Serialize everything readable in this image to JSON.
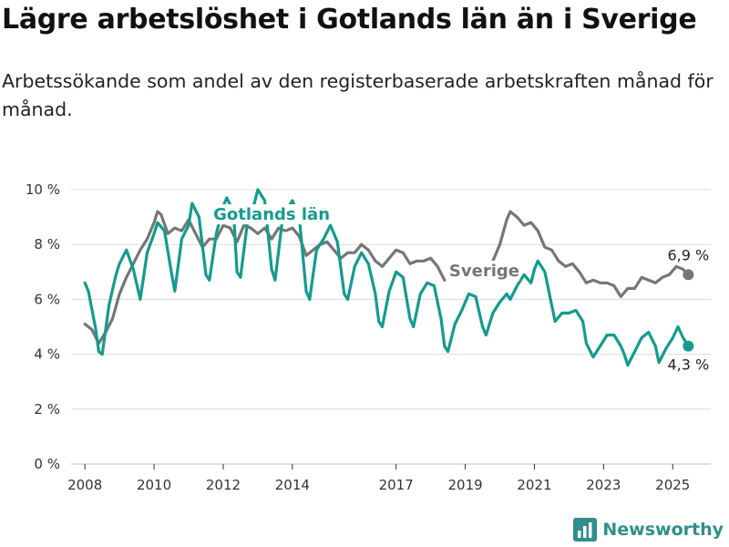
{
  "title": "Lägre arbetslöshet i Gotlands län än i Sverige",
  "subtitle": "Arbetssökande som andel av den registerbaserade arbetskraften månad för månad.",
  "brand": {
    "name": "Newsworthy",
    "icon": "bar-chart-logo-icon",
    "color": "#2f8f8a"
  },
  "chart_data": {
    "type": "line",
    "x_unit": "year",
    "xlim": [
      2007.6,
      2026.1
    ],
    "ylim": [
      0,
      10
    ],
    "grid": true,
    "x_ticks": [
      {
        "value": 2008,
        "label": "2008"
      },
      {
        "value": 2010,
        "label": "2010"
      },
      {
        "value": 2012,
        "label": "2012"
      },
      {
        "value": 2014,
        "label": "2014"
      },
      {
        "value": 2017,
        "label": "2017"
      },
      {
        "value": 2019,
        "label": "2019"
      },
      {
        "value": 2021,
        "label": "2021"
      },
      {
        "value": 2023,
        "label": "2023"
      },
      {
        "value": 2025,
        "label": "2025"
      }
    ],
    "y_ticks": [
      {
        "value": 0,
        "label": "0 %"
      },
      {
        "value": 2,
        "label": "2 %"
      },
      {
        "value": 4,
        "label": "4 %"
      },
      {
        "value": 6,
        "label": "6 %"
      },
      {
        "value": 8,
        "label": "8 %"
      },
      {
        "value": 10,
        "label": "10 %"
      }
    ],
    "series": [
      {
        "name": "Sverige",
        "color": "#767676",
        "end_label": "6,9 %",
        "points": [
          [
            2008.0,
            5.1
          ],
          [
            2008.2,
            4.9
          ],
          [
            2008.4,
            4.4
          ],
          [
            2008.6,
            4.8
          ],
          [
            2008.8,
            5.3
          ],
          [
            2009.0,
            6.2
          ],
          [
            2009.2,
            6.8
          ],
          [
            2009.4,
            7.3
          ],
          [
            2009.6,
            7.8
          ],
          [
            2009.8,
            8.2
          ],
          [
            2010.0,
            8.8
          ],
          [
            2010.1,
            9.2
          ],
          [
            2010.2,
            9.1
          ],
          [
            2010.4,
            8.4
          ],
          [
            2010.6,
            8.6
          ],
          [
            2010.8,
            8.5
          ],
          [
            2011.0,
            8.9
          ],
          [
            2011.2,
            8.4
          ],
          [
            2011.4,
            7.9
          ],
          [
            2011.6,
            8.2
          ],
          [
            2011.8,
            8.2
          ],
          [
            2012.0,
            8.7
          ],
          [
            2012.2,
            8.6
          ],
          [
            2012.4,
            8.1
          ],
          [
            2012.6,
            8.7
          ],
          [
            2012.8,
            8.6
          ],
          [
            2013.0,
            8.4
          ],
          [
            2013.2,
            8.6
          ],
          [
            2013.4,
            8.2
          ],
          [
            2013.6,
            8.6
          ],
          [
            2013.8,
            8.5
          ],
          [
            2014.0,
            8.6
          ],
          [
            2014.2,
            8.3
          ],
          [
            2014.4,
            7.6
          ],
          [
            2014.6,
            7.8
          ],
          [
            2014.8,
            8.0
          ],
          [
            2015.0,
            8.1
          ],
          [
            2015.2,
            7.8
          ],
          [
            2015.4,
            7.5
          ],
          [
            2015.6,
            7.7
          ],
          [
            2015.8,
            7.7
          ],
          [
            2016.0,
            8.0
          ],
          [
            2016.2,
            7.8
          ],
          [
            2016.4,
            7.4
          ],
          [
            2016.6,
            7.2
          ],
          [
            2016.8,
            7.5
          ],
          [
            2017.0,
            7.8
          ],
          [
            2017.2,
            7.7
          ],
          [
            2017.4,
            7.3
          ],
          [
            2017.6,
            7.4
          ],
          [
            2017.8,
            7.4
          ],
          [
            2018.0,
            7.5
          ],
          [
            2018.2,
            7.2
          ],
          [
            2018.4,
            6.7
          ],
          [
            2019.8,
            7.4
          ],
          [
            2020.0,
            8.0
          ],
          [
            2020.2,
            8.9
          ],
          [
            2020.3,
            9.2
          ],
          [
            2020.5,
            9.0
          ],
          [
            2020.7,
            8.7
          ],
          [
            2020.9,
            8.8
          ],
          [
            2021.1,
            8.5
          ],
          [
            2021.3,
            7.9
          ],
          [
            2021.5,
            7.8
          ],
          [
            2021.7,
            7.4
          ],
          [
            2021.9,
            7.2
          ],
          [
            2022.1,
            7.3
          ],
          [
            2022.3,
            7.0
          ],
          [
            2022.5,
            6.6
          ],
          [
            2022.7,
            6.7
          ],
          [
            2022.9,
            6.6
          ],
          [
            2023.1,
            6.6
          ],
          [
            2023.3,
            6.5
          ],
          [
            2023.5,
            6.1
          ],
          [
            2023.7,
            6.4
          ],
          [
            2023.9,
            6.4
          ],
          [
            2024.1,
            6.8
          ],
          [
            2024.3,
            6.7
          ],
          [
            2024.5,
            6.6
          ],
          [
            2024.7,
            6.8
          ],
          [
            2024.9,
            6.9
          ],
          [
            2025.1,
            7.2
          ],
          [
            2025.3,
            7.1
          ],
          [
            2025.45,
            6.9
          ]
        ]
      },
      {
        "name": "Gotlands län",
        "color": "#139b8f",
        "end_label": "4,3 %",
        "points": [
          [
            2008.0,
            6.6
          ],
          [
            2008.1,
            6.3
          ],
          [
            2008.3,
            5.0
          ],
          [
            2008.4,
            4.1
          ],
          [
            2008.5,
            4.0
          ],
          [
            2008.7,
            5.8
          ],
          [
            2008.9,
            6.9
          ],
          [
            2009.0,
            7.3
          ],
          [
            2009.2,
            7.8
          ],
          [
            2009.4,
            7.1
          ],
          [
            2009.6,
            6.0
          ],
          [
            2009.8,
            7.7
          ],
          [
            2010.0,
            8.4
          ],
          [
            2010.1,
            8.8
          ],
          [
            2010.3,
            8.5
          ],
          [
            2010.5,
            7.0
          ],
          [
            2010.6,
            6.3
          ],
          [
            2010.8,
            8.2
          ],
          [
            2011.0,
            8.7
          ],
          [
            2011.1,
            9.5
          ],
          [
            2011.3,
            9.0
          ],
          [
            2011.5,
            6.9
          ],
          [
            2011.6,
            6.7
          ],
          [
            2011.8,
            8.4
          ],
          [
            2012.0,
            9.4
          ],
          [
            2012.1,
            9.7
          ],
          [
            2012.3,
            9.2
          ],
          [
            2012.4,
            7.0
          ],
          [
            2012.5,
            6.8
          ],
          [
            2012.7,
            8.8
          ],
          [
            2012.9,
            9.5
          ],
          [
            2013.0,
            10.0
          ],
          [
            2013.2,
            9.6
          ],
          [
            2013.4,
            7.1
          ],
          [
            2013.5,
            6.7
          ],
          [
            2013.7,
            8.8
          ],
          [
            2013.9,
            9.4
          ],
          [
            2014.0,
            9.6
          ],
          [
            2014.2,
            9.0
          ],
          [
            2014.4,
            6.3
          ],
          [
            2014.5,
            6.0
          ],
          [
            2014.7,
            7.8
          ],
          [
            2014.9,
            8.2
          ],
          [
            2015.1,
            8.7
          ],
          [
            2015.3,
            8.1
          ],
          [
            2015.5,
            6.2
          ],
          [
            2015.6,
            6.0
          ],
          [
            2015.8,
            7.2
          ],
          [
            2016.0,
            7.7
          ],
          [
            2016.2,
            7.3
          ],
          [
            2016.4,
            6.2
          ],
          [
            2016.5,
            5.2
          ],
          [
            2016.6,
            5.0
          ],
          [
            2016.8,
            6.3
          ],
          [
            2017.0,
            7.0
          ],
          [
            2017.2,
            6.8
          ],
          [
            2017.4,
            5.3
          ],
          [
            2017.5,
            5.0
          ],
          [
            2017.7,
            6.2
          ],
          [
            2017.9,
            6.6
          ],
          [
            2018.1,
            6.5
          ],
          [
            2018.3,
            5.3
          ],
          [
            2018.4,
            4.3
          ],
          [
            2018.5,
            4.1
          ],
          [
            2018.7,
            5.1
          ],
          [
            2018.9,
            5.6
          ],
          [
            2019.1,
            6.2
          ],
          [
            2019.3,
            6.1
          ],
          [
            2019.5,
            5.0
          ],
          [
            2019.6,
            4.7
          ],
          [
            2019.8,
            5.5
          ],
          [
            2020.0,
            5.9
          ],
          [
            2020.2,
            6.2
          ],
          [
            2020.3,
            6.0
          ],
          [
            2020.5,
            6.5
          ],
          [
            2020.7,
            6.9
          ],
          [
            2020.9,
            6.6
          ],
          [
            2021.0,
            7.1
          ],
          [
            2021.1,
            7.4
          ],
          [
            2021.3,
            7.0
          ],
          [
            2021.5,
            5.8
          ],
          [
            2021.6,
            5.2
          ],
          [
            2021.8,
            5.5
          ],
          [
            2022.0,
            5.5
          ],
          [
            2022.2,
            5.6
          ],
          [
            2022.4,
            5.2
          ],
          [
            2022.5,
            4.4
          ],
          [
            2022.7,
            3.9
          ],
          [
            2022.9,
            4.3
          ],
          [
            2023.1,
            4.7
          ],
          [
            2023.3,
            4.7
          ],
          [
            2023.5,
            4.3
          ],
          [
            2023.6,
            4.0
          ],
          [
            2023.7,
            3.6
          ],
          [
            2023.9,
            4.1
          ],
          [
            2024.1,
            4.6
          ],
          [
            2024.3,
            4.8
          ],
          [
            2024.5,
            4.3
          ],
          [
            2024.6,
            3.7
          ],
          [
            2024.8,
            4.2
          ],
          [
            2025.0,
            4.6
          ],
          [
            2025.15,
            5.0
          ],
          [
            2025.3,
            4.6
          ],
          [
            2025.45,
            4.3
          ]
        ]
      }
    ],
    "annotations": [
      {
        "text": "Gotlands län",
        "series": "Gotlands län",
        "x": 2013.4,
        "y": 9.0
      },
      {
        "text": "Sverige",
        "series": "Sverige",
        "x": 2019.55,
        "y": 6.95
      }
    ]
  }
}
